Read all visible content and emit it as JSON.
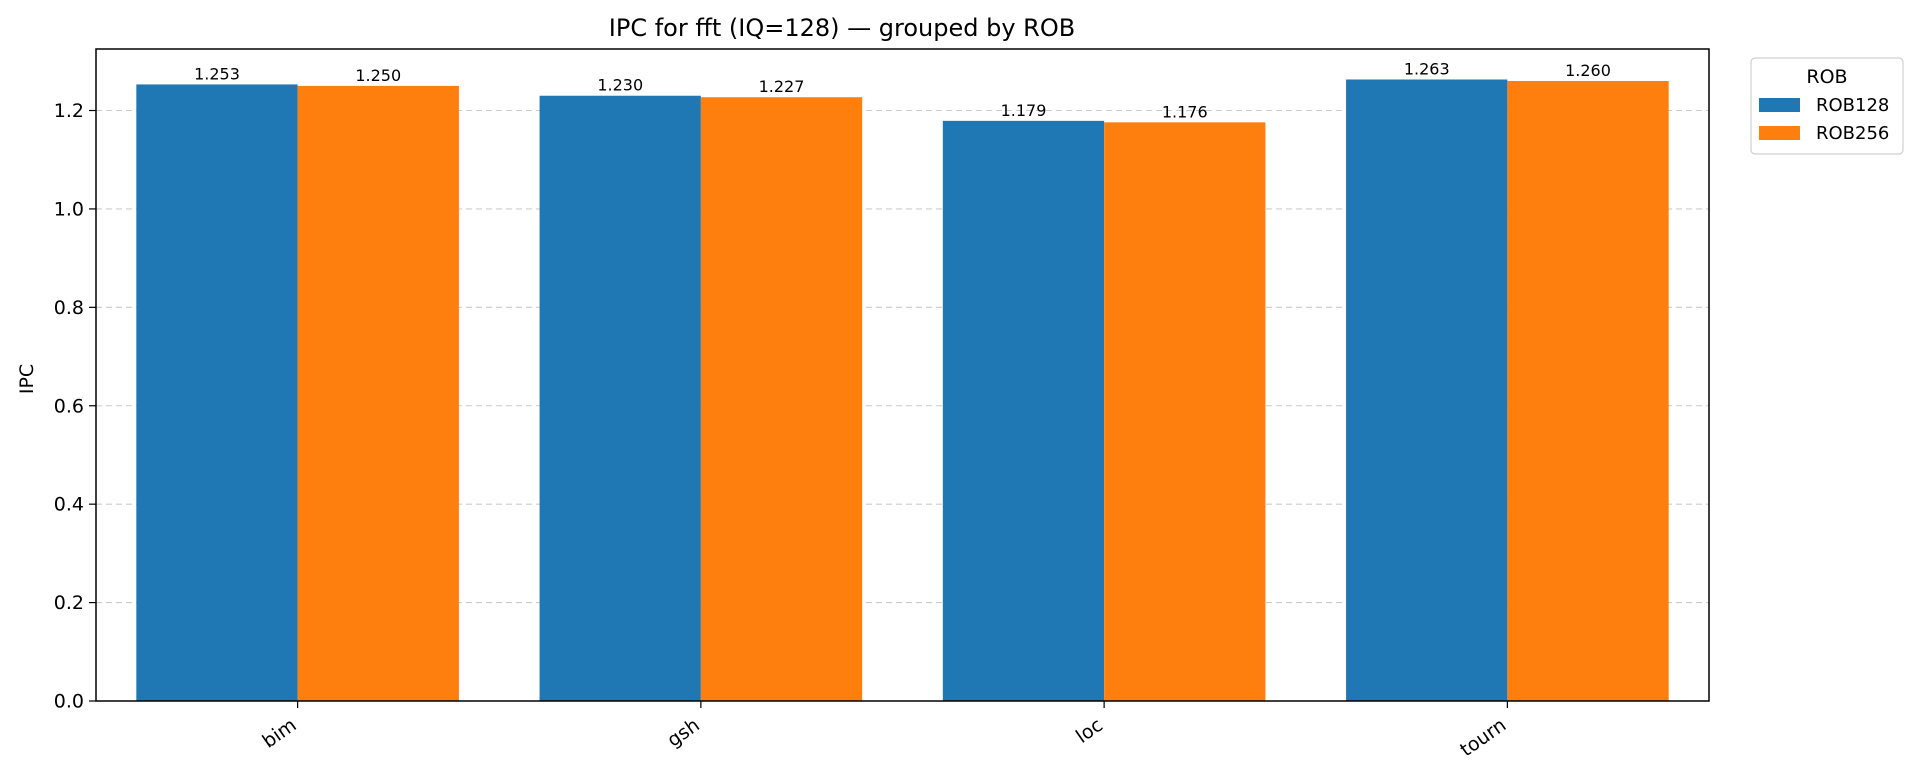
{
  "chart_data": {
    "type": "bar",
    "title": "IPC for fft (IQ=128) — grouped by ROB",
    "xlabel": "",
    "ylabel": "IPC",
    "categories": [
      "bim",
      "gsh",
      "loc",
      "tourn"
    ],
    "series": [
      {
        "name": "ROB128",
        "values": [
          1.253,
          1.23,
          1.179,
          1.263
        ],
        "labels": [
          "1.253",
          "1.230",
          "1.179",
          "1.263"
        ],
        "color": "#1f77b4"
      },
      {
        "name": "ROB256",
        "values": [
          1.25,
          1.227,
          1.176,
          1.26
        ],
        "labels": [
          "1.250",
          "1.227",
          "1.176",
          "1.260"
        ],
        "color": "#ff7f0e"
      }
    ],
    "ylim": [
      0,
      1.325
    ],
    "yticks": [
      0.0,
      0.2,
      0.4,
      0.6,
      0.8,
      1.0,
      1.2
    ],
    "ytick_labels": [
      "0.0",
      "0.2",
      "0.4",
      "0.6",
      "0.8",
      "1.0",
      "1.2"
    ],
    "grid": "y-dashed",
    "legend": {
      "title": "ROB",
      "placement": "outside-top-right"
    }
  }
}
